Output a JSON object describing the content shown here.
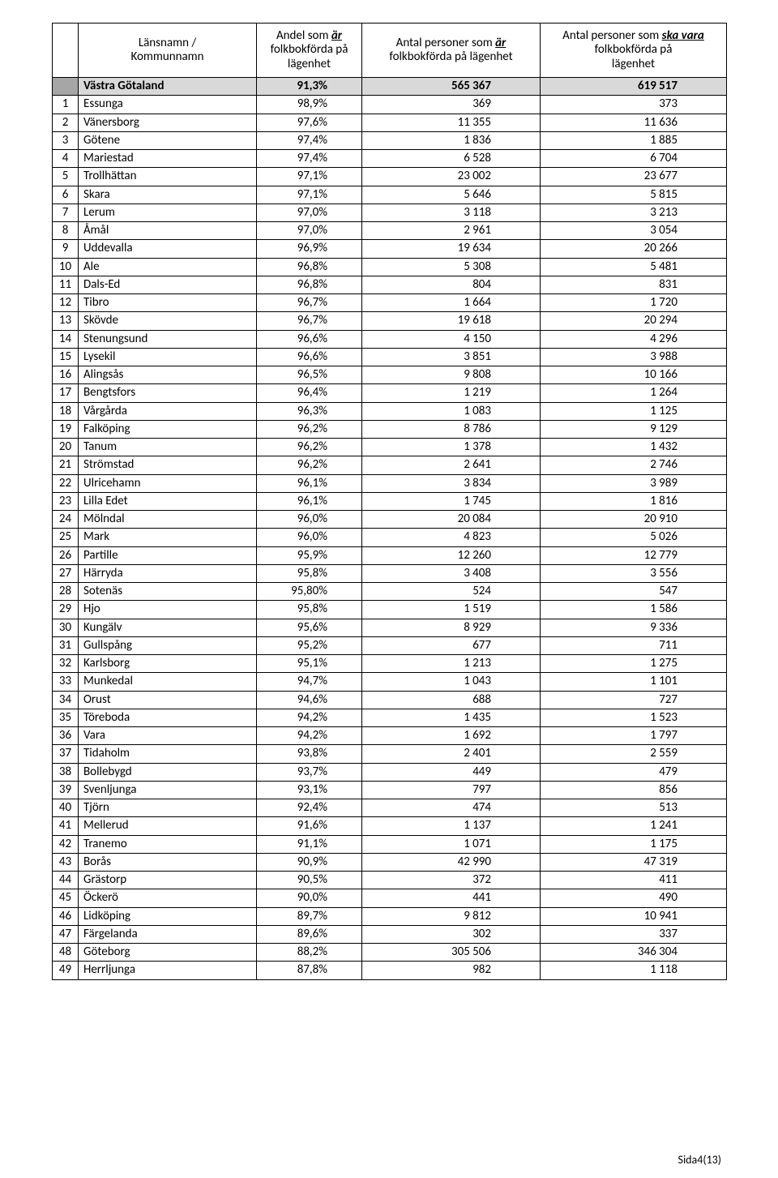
{
  "headers": {
    "col_name_line1": "Länsnamn /",
    "col_name_line2": "Kommunnamn",
    "col_pct_pre": "Andel som ",
    "col_pct_em": "är",
    "col_pct_post1": " folkbokförda på",
    "col_pct_post2": "lägenhet",
    "col_n1_pre": "Antal personer som ",
    "col_n1_em": "är",
    "col_n1_post": " folkbokförda på lägenhet",
    "col_n2_pre": "Antal personer som ",
    "col_n2_em": "ska vara",
    "col_n2_post1": " folkbokförda på",
    "col_n2_post2": "lägenhet"
  },
  "total": {
    "name": "Västra Götaland",
    "pct": "91,3%",
    "n1": "565 367",
    "n2": "619 517"
  },
  "rows": [
    {
      "idx": "1",
      "name": "Essunga",
      "pct": "98,9%",
      "n1": "369",
      "n2": "373"
    },
    {
      "idx": "2",
      "name": "Vänersborg",
      "pct": "97,6%",
      "n1": "11 355",
      "n2": "11 636"
    },
    {
      "idx": "3",
      "name": "Götene",
      "pct": "97,4%",
      "n1": "1 836",
      "n2": "1 885"
    },
    {
      "idx": "4",
      "name": "Mariestad",
      "pct": "97,4%",
      "n1": "6 528",
      "n2": "6 704"
    },
    {
      "idx": "5",
      "name": "Trollhättan",
      "pct": "97,1%",
      "n1": "23 002",
      "n2": "23 677"
    },
    {
      "idx": "6",
      "name": "Skara",
      "pct": "97,1%",
      "n1": "5 646",
      "n2": "5 815"
    },
    {
      "idx": "7",
      "name": "Lerum",
      "pct": "97,0%",
      "n1": "3 118",
      "n2": "3 213"
    },
    {
      "idx": "8",
      "name": "Åmål",
      "pct": "97,0%",
      "n1": "2 961",
      "n2": "3 054"
    },
    {
      "idx": "9",
      "name": "Uddevalla",
      "pct": "96,9%",
      "n1": "19 634",
      "n2": "20 266"
    },
    {
      "idx": "10",
      "name": "Ale",
      "pct": "96,8%",
      "n1": "5 308",
      "n2": "5 481"
    },
    {
      "idx": "11",
      "name": "Dals-Ed",
      "pct": "96,8%",
      "n1": "804",
      "n2": "831"
    },
    {
      "idx": "12",
      "name": "Tibro",
      "pct": "96,7%",
      "n1": "1 664",
      "n2": "1 720"
    },
    {
      "idx": "13",
      "name": "Skövde",
      "pct": "96,7%",
      "n1": "19 618",
      "n2": "20 294"
    },
    {
      "idx": "14",
      "name": "Stenungsund",
      "pct": "96,6%",
      "n1": "4 150",
      "n2": "4 296"
    },
    {
      "idx": "15",
      "name": "Lysekil",
      "pct": "96,6%",
      "n1": "3 851",
      "n2": "3 988"
    },
    {
      "idx": "16",
      "name": "Alingsås",
      "pct": "96,5%",
      "n1": "9 808",
      "n2": "10 166"
    },
    {
      "idx": "17",
      "name": "Bengtsfors",
      "pct": "96,4%",
      "n1": "1 219",
      "n2": "1 264"
    },
    {
      "idx": "18",
      "name": "Vårgårda",
      "pct": "96,3%",
      "n1": "1 083",
      "n2": "1 125"
    },
    {
      "idx": "19",
      "name": "Falköping",
      "pct": "96,2%",
      "n1": "8 786",
      "n2": "9 129"
    },
    {
      "idx": "20",
      "name": "Tanum",
      "pct": "96,2%",
      "n1": "1 378",
      "n2": "1 432"
    },
    {
      "idx": "21",
      "name": "Strömstad",
      "pct": "96,2%",
      "n1": "2 641",
      "n2": "2 746"
    },
    {
      "idx": "22",
      "name": "Ulricehamn",
      "pct": "96,1%",
      "n1": "3 834",
      "n2": "3 989"
    },
    {
      "idx": "23",
      "name": "Lilla Edet",
      "pct": "96,1%",
      "n1": "1 745",
      "n2": "1 816"
    },
    {
      "idx": "24",
      "name": "Mölndal",
      "pct": "96,0%",
      "n1": "20 084",
      "n2": "20 910"
    },
    {
      "idx": "25",
      "name": "Mark",
      "pct": "96,0%",
      "n1": "4 823",
      "n2": "5 026"
    },
    {
      "idx": "26",
      "name": "Partille",
      "pct": "95,9%",
      "n1": "12 260",
      "n2": "12 779"
    },
    {
      "idx": "27",
      "name": "Härryda",
      "pct": "95,8%",
      "n1": "3 408",
      "n2": "3 556"
    },
    {
      "idx": "28",
      "name": "Sotenäs",
      "pct": "95,80%",
      "n1": "524",
      "n2": "547"
    },
    {
      "idx": "29",
      "name": "Hjo",
      "pct": "95,8%",
      "n1": "1 519",
      "n2": "1 586"
    },
    {
      "idx": "30",
      "name": "Kungälv",
      "pct": "95,6%",
      "n1": "8 929",
      "n2": "9 336"
    },
    {
      "idx": "31",
      "name": "Gullspång",
      "pct": "95,2%",
      "n1": "677",
      "n2": "711"
    },
    {
      "idx": "32",
      "name": "Karlsborg",
      "pct": "95,1%",
      "n1": "1 213",
      "n2": "1 275"
    },
    {
      "idx": "33",
      "name": "Munkedal",
      "pct": "94,7%",
      "n1": "1 043",
      "n2": "1 101"
    },
    {
      "idx": "34",
      "name": "Orust",
      "pct": "94,6%",
      "n1": "688",
      "n2": "727"
    },
    {
      "idx": "35",
      "name": "Töreboda",
      "pct": "94,2%",
      "n1": "1 435",
      "n2": "1 523"
    },
    {
      "idx": "36",
      "name": "Vara",
      "pct": "94,2%",
      "n1": "1 692",
      "n2": "1 797"
    },
    {
      "idx": "37",
      "name": "Tidaholm",
      "pct": "93,8%",
      "n1": "2 401",
      "n2": "2 559"
    },
    {
      "idx": "38",
      "name": "Bollebygd",
      "pct": "93,7%",
      "n1": "449",
      "n2": "479"
    },
    {
      "idx": "39",
      "name": "Svenljunga",
      "pct": "93,1%",
      "n1": "797",
      "n2": "856"
    },
    {
      "idx": "40",
      "name": "Tjörn",
      "pct": "92,4%",
      "n1": "474",
      "n2": "513"
    },
    {
      "idx": "41",
      "name": "Mellerud",
      "pct": "91,6%",
      "n1": "1 137",
      "n2": "1 241"
    },
    {
      "idx": "42",
      "name": "Tranemo",
      "pct": "91,1%",
      "n1": "1 071",
      "n2": "1 175"
    },
    {
      "idx": "43",
      "name": "Borås",
      "pct": "90,9%",
      "n1": "42 990",
      "n2": "47 319"
    },
    {
      "idx": "44",
      "name": "Grästorp",
      "pct": "90,5%",
      "n1": "372",
      "n2": "411"
    },
    {
      "idx": "45",
      "name": "Öckerö",
      "pct": "90,0%",
      "n1": "441",
      "n2": "490"
    },
    {
      "idx": "46",
      "name": "Lidköping",
      "pct": "89,7%",
      "n1": "9 812",
      "n2": "10 941"
    },
    {
      "idx": "47",
      "name": "Färgelanda",
      "pct": "89,6%",
      "n1": "302",
      "n2": "337"
    },
    {
      "idx": "48",
      "name": "Göteborg",
      "pct": "88,2%",
      "n1": "305 506",
      "n2": "346 304"
    },
    {
      "idx": "49",
      "name": "Herrljunga",
      "pct": "87,8%",
      "n1": "982",
      "n2": "1 118"
    }
  ],
  "footer": "Sida4(13)"
}
